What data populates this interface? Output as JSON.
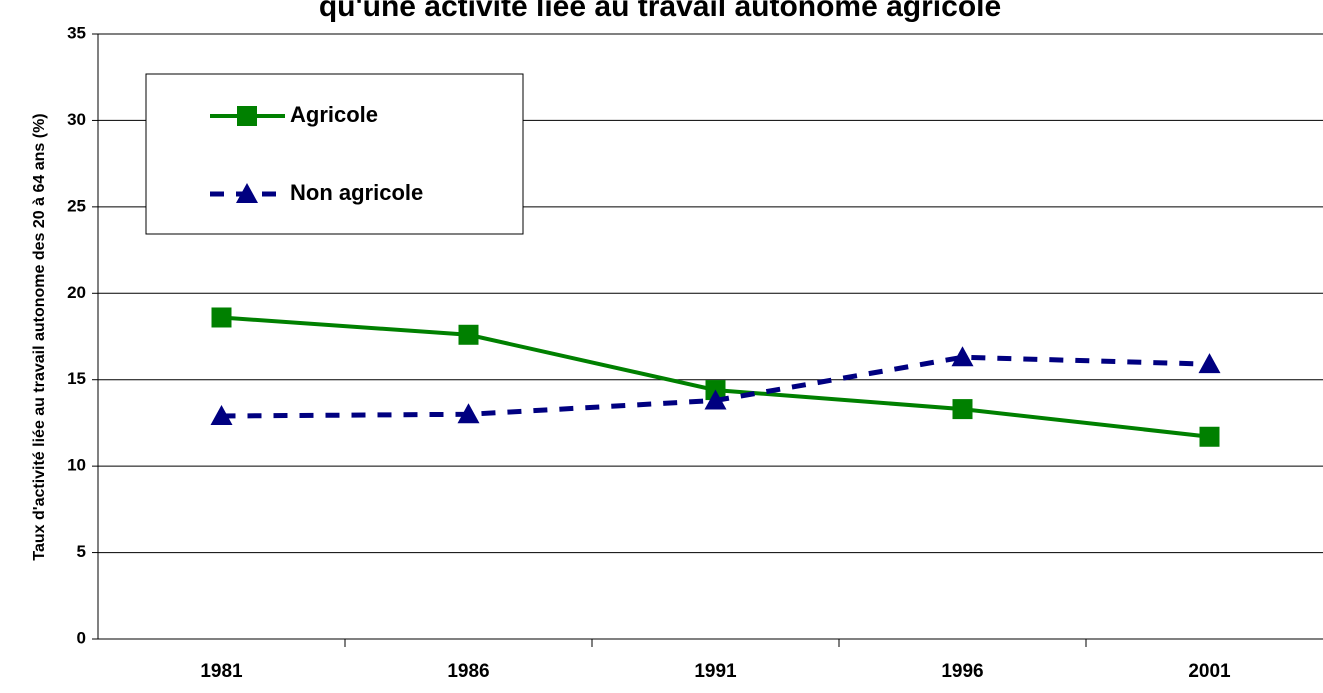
{
  "chart_data": {
    "type": "line",
    "title": "qu'une activité liée au travail autonome agricole",
    "y_label": "Taux d'activité liée au travail autonome des 20 à 64 ans (%)",
    "categories": [
      "1981",
      "1986",
      "1991",
      "1996",
      "2001"
    ],
    "series": [
      {
        "name": "Agricole",
        "color": "#008000",
        "marker": "square",
        "dash": "solid",
        "values": [
          18.6,
          17.6,
          14.4,
          13.3,
          11.7
        ]
      },
      {
        "name": "Non agricole",
        "color": "#000080",
        "marker": "triangle",
        "dash": "dashed",
        "values": [
          12.9,
          13.0,
          13.8,
          16.3,
          15.9
        ]
      }
    ],
    "ylim": [
      0,
      35
    ],
    "yticks": [
      0,
      5,
      10,
      15,
      20,
      25,
      30,
      35
    ],
    "grid": true,
    "legend": "upper left"
  }
}
